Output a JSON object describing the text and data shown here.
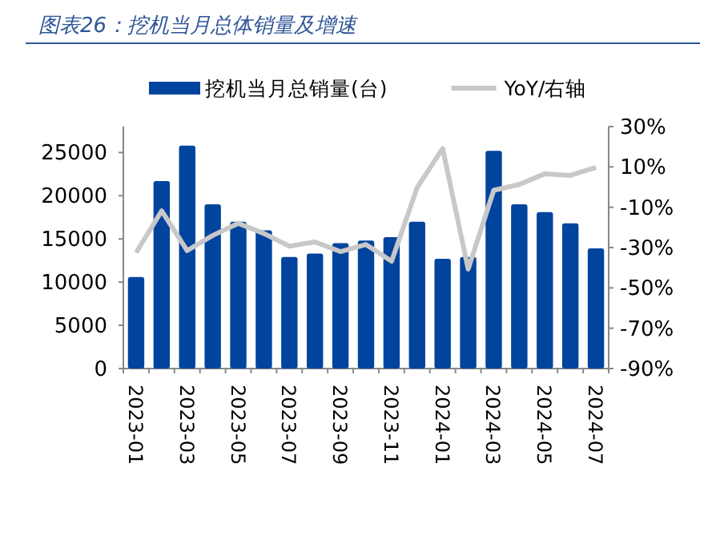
{
  "chart_data": {
    "type": "bar",
    "title": "图表26：挖机当月总体销量及增速",
    "categories": [
      "2023-01",
      null,
      "2023-03",
      null,
      "2023-05",
      null,
      "2023-07",
      null,
      "2023-09",
      null,
      "2023-11",
      null,
      "2024-01",
      null,
      "2024-03",
      null,
      "2024-05",
      null,
      "2024-07"
    ],
    "series": [
      {
        "name": "挖机当月总销量(台)",
        "type": "bar",
        "color": "#00449e",
        "values": [
          10600,
          21700,
          25800,
          19000,
          17000,
          16000,
          12900,
          13300,
          14500,
          14800,
          15200,
          17000,
          12700,
          12900,
          25200,
          19000,
          18100,
          16800,
          13900
        ]
      },
      {
        "name": "YoY/右轴",
        "type": "line",
        "axis": "y2",
        "color": "#c8c8c8",
        "values": [
          -32.5,
          -11.8,
          -31.5,
          -24,
          -18,
          -23,
          -29.3,
          -27.2,
          -32,
          -28.5,
          -36.8,
          -0.3,
          19.1,
          -40.7,
          -1.6,
          1.3,
          6.6,
          5.8,
          9.8
        ]
      }
    ],
    "ylim": [
      0,
      28000
    ],
    "yticks": [
      0,
      5000,
      10000,
      15000,
      20000,
      25000
    ],
    "y2lim": [
      -90,
      30
    ],
    "y2ticks": [
      {
        "value": -90,
        "label": "-90%"
      },
      {
        "value": -70,
        "label": "-70%"
      },
      {
        "value": -50,
        "label": "-50%"
      },
      {
        "value": -30,
        "label": "-30%"
      },
      {
        "value": -10,
        "label": "-10%"
      },
      {
        "value": 10,
        "label": "10%"
      },
      {
        "value": 30,
        "label": "30%"
      }
    ],
    "legend": "top",
    "grid": false
  }
}
